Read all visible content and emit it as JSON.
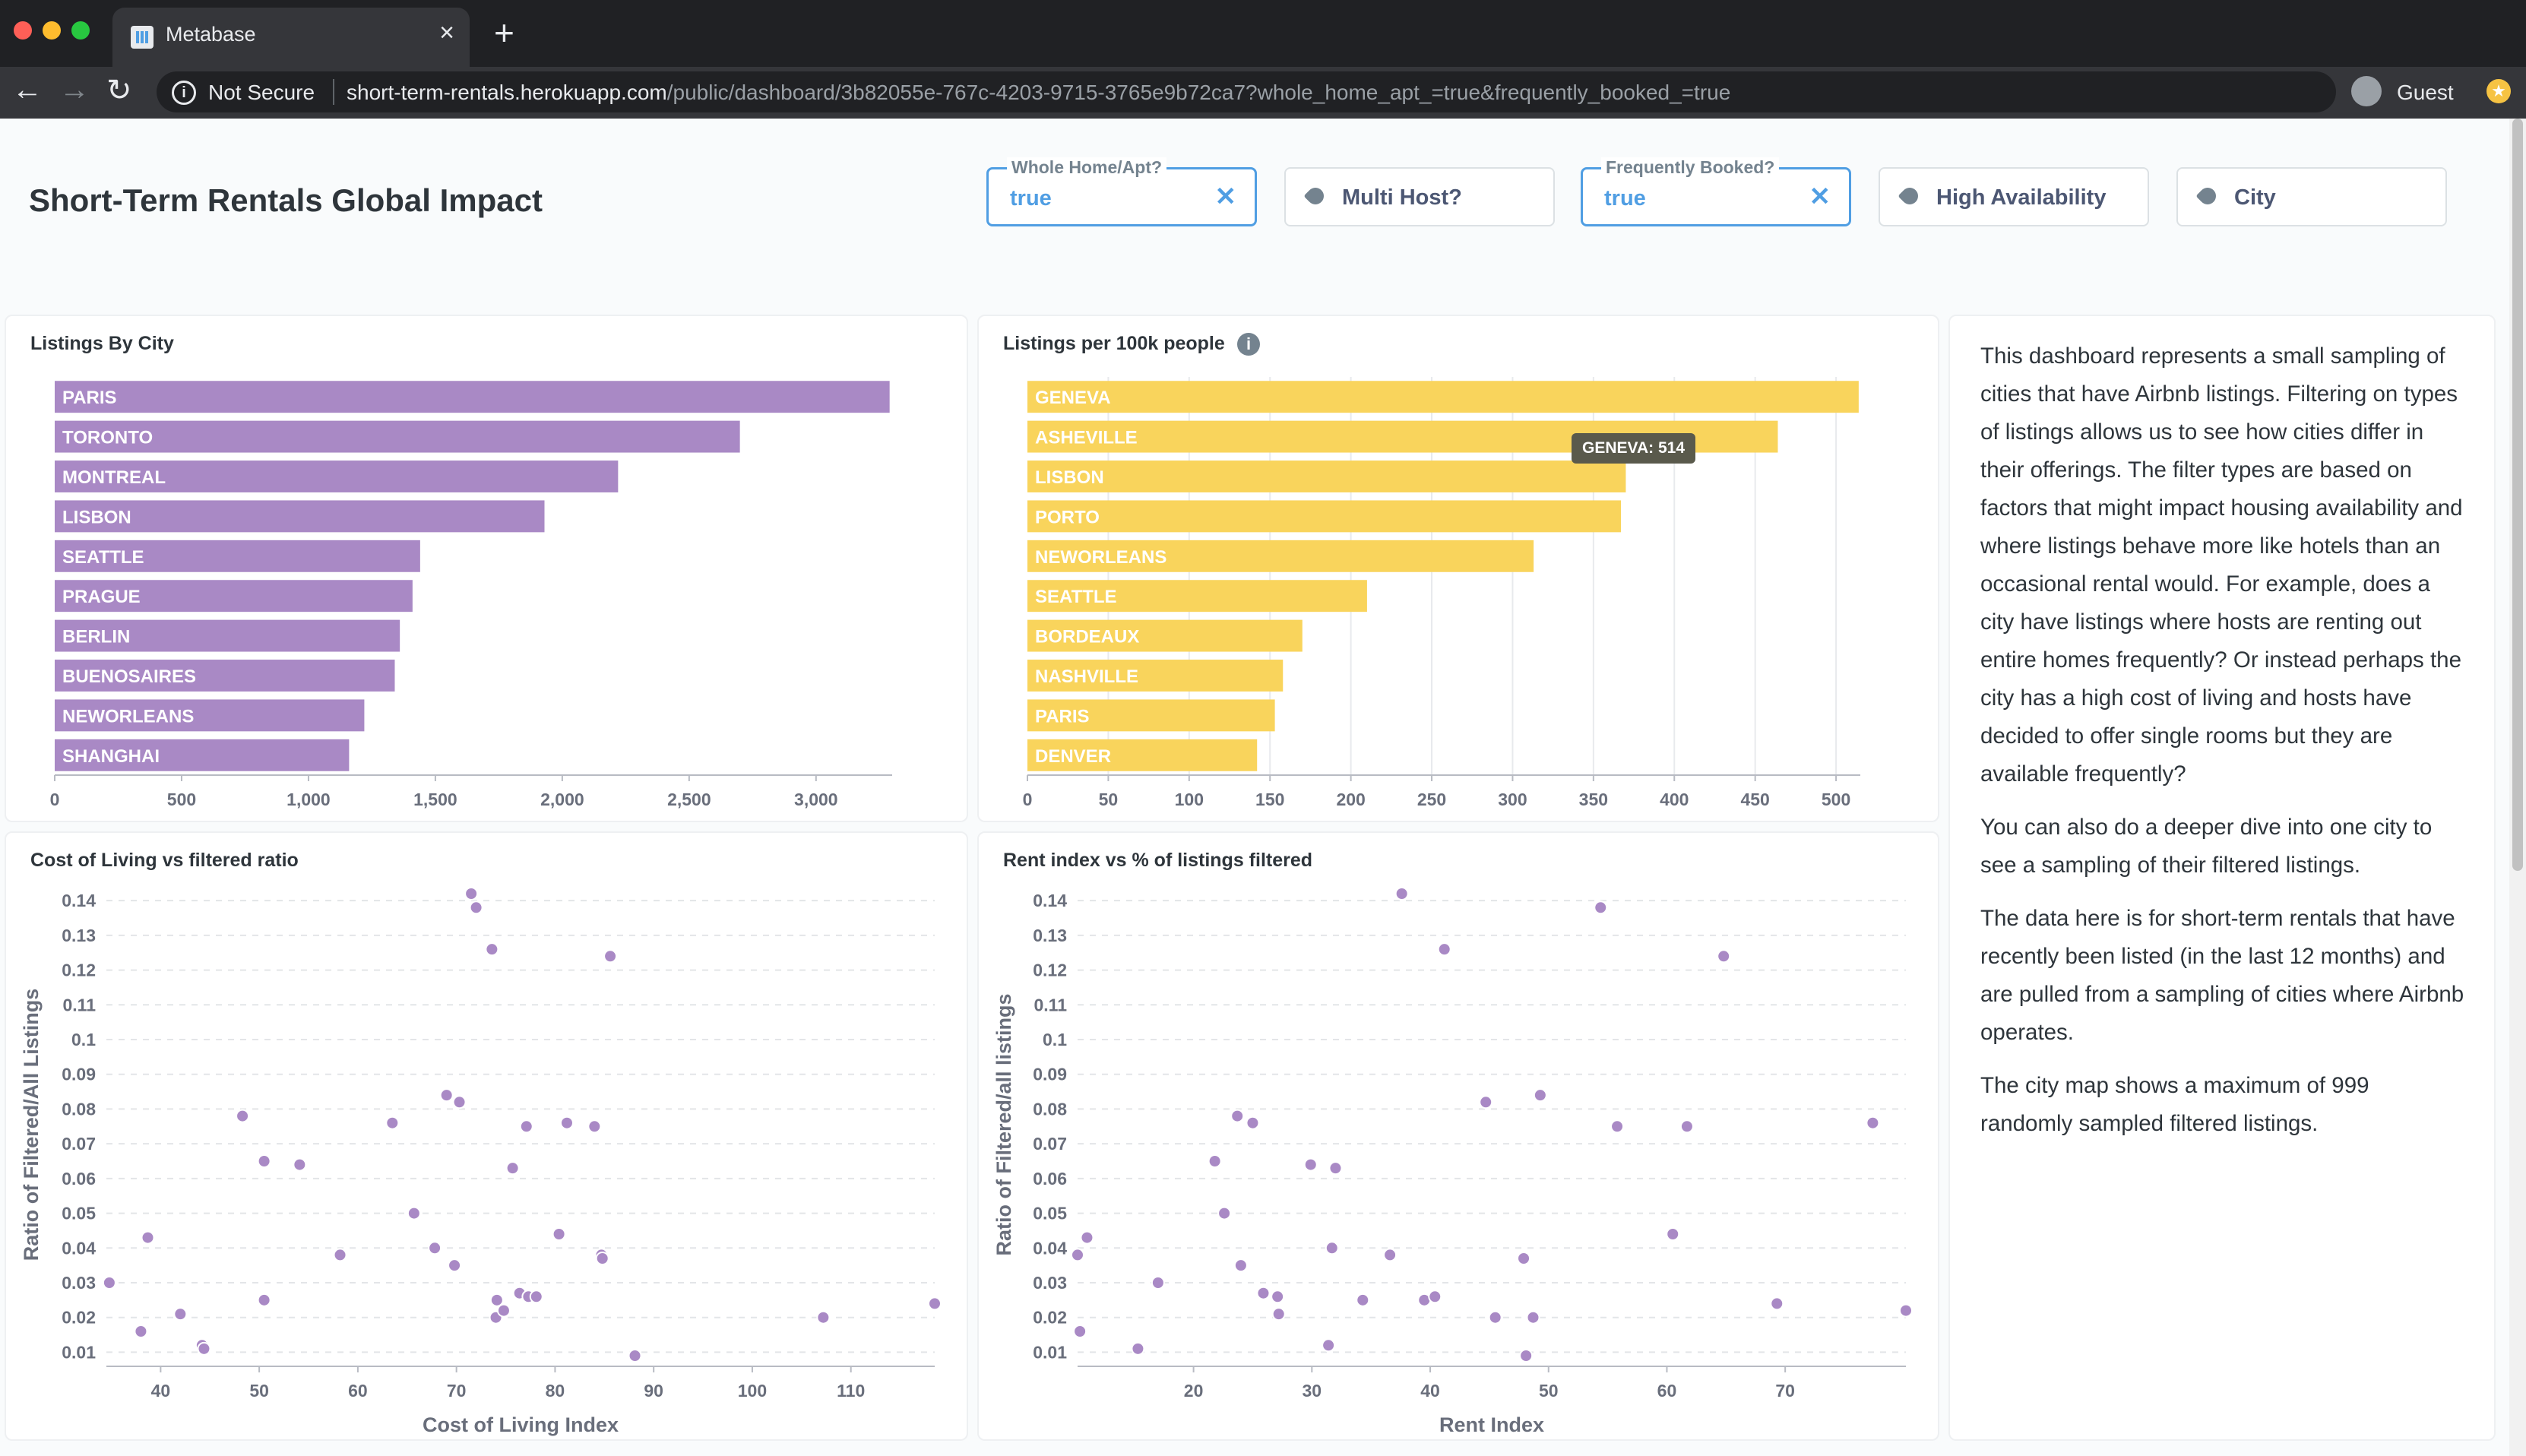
{
  "browser": {
    "tab_title": "Metabase",
    "security_label": "Not Secure",
    "url_host": "short-term-rentals.herokuapp.com",
    "url_path": "/public/dashboard/3b82055e-767c-4203-9715-3765e9b72ca7?whole_home_apt_=true&frequently_booked_=true",
    "profile_label": "Guest"
  },
  "dashboard": {
    "title": "Short-Term Rentals Global Impact",
    "filters": [
      {
        "label": "Whole Home/Apt?",
        "value": "true",
        "active": true
      },
      {
        "name": "Multi Host?",
        "active": false
      },
      {
        "label": "Frequently Booked?",
        "value": "true",
        "active": true
      },
      {
        "name": "High Availability",
        "active": false
      },
      {
        "name": "City",
        "active": false
      }
    ]
  },
  "colors": {
    "purple": "#a989c5",
    "yellow": "#f9d45c",
    "accent": "#509ee3"
  },
  "cards": {
    "listings_by_city": {
      "title": "Listings By City"
    },
    "listings_per_100k": {
      "title": "Listings per 100k people",
      "tooltip": "GENEVA: 514"
    },
    "cost_of_living": {
      "title": "Cost of Living vs filtered ratio"
    },
    "rent_index": {
      "title": "Rent index vs % of listings filtered"
    }
  },
  "text_card": {
    "paragraphs": [
      "This dashboard represents a small sampling of cities that have Airbnb listings. Filtering on types of listings allows us to see how cities differ in their offerings. The filter types are based on factors that might impact housing availability and where listings behave more like hotels than an occasional rental would. For example, does a city have listings where hosts are renting out entire homes frequently? Or instead perhaps the city has a high cost of living and hosts have decided to offer single rooms but they are available frequently?",
      "You can also do a deeper dive into one city to see a sampling of their filtered listings.",
      "The data here is for short-term rentals that have recently been listed (in the last 12 months) and are pulled from a sampling of cities where Airbnb operates.",
      "The city map shows a maximum of 999 randomly sampled filtered listings."
    ]
  },
  "chart_data": [
    {
      "type": "bar",
      "title": "Listings By City",
      "orientation": "horizontal",
      "categories": [
        "PARIS",
        "TORONTO",
        "MONTREAL",
        "LISBON",
        "SEATTLE",
        "PRAGUE",
        "BERLIN",
        "BUENOSAIRES",
        "NEWORLEANS",
        "SHANGHAI"
      ],
      "values": [
        3290,
        2700,
        2220,
        1930,
        1440,
        1410,
        1360,
        1340,
        1220,
        1160
      ],
      "xlim": [
        0,
        3300
      ],
      "xticks": [
        0,
        500,
        1000,
        1500,
        2000,
        2500,
        3000
      ],
      "xtick_labels": [
        "0",
        "500",
        "1,000",
        "1,500",
        "2,000",
        "2,500",
        "3,000"
      ],
      "color": "#a989c5"
    },
    {
      "type": "bar",
      "title": "Listings per 100k people",
      "orientation": "horizontal",
      "categories": [
        "GENEVA",
        "ASHEVILLE",
        "LISBON",
        "PORTO",
        "NEWORLEANS",
        "SEATTLE",
        "BORDEAUX",
        "NASHVILLE",
        "PARIS",
        "DENVER"
      ],
      "values": [
        514,
        464,
        370,
        367,
        313,
        210,
        170,
        158,
        153,
        142
      ],
      "xlim": [
        0,
        515
      ],
      "xticks": [
        0,
        50,
        100,
        150,
        200,
        250,
        300,
        350,
        400,
        450,
        500
      ],
      "xtick_labels": [
        "0",
        "50",
        "100",
        "150",
        "200",
        "250",
        "300",
        "350",
        "400",
        "450",
        "500"
      ],
      "grid": true,
      "color": "#f9d45c"
    },
    {
      "type": "scatter",
      "title": "Cost of Living vs filtered ratio",
      "xlabel": "Cost of Living Index",
      "ylabel": "Ratio of Filtered/All Listings",
      "xlim": [
        34.5,
        118.5
      ],
      "ylim": [
        0.009,
        0.142
      ],
      "xticks": [
        40,
        50,
        60,
        70,
        80,
        90,
        100,
        110
      ],
      "yticks": [
        0.01,
        0.02,
        0.03,
        0.04,
        0.05,
        0.06,
        0.07,
        0.08,
        0.09,
        0.1,
        0.11,
        0.12,
        0.13,
        0.14
      ],
      "points": [
        [
          34.8,
          0.03
        ],
        [
          38,
          0.016
        ],
        [
          38.7,
          0.043
        ],
        [
          42,
          0.021
        ],
        [
          44.2,
          0.012
        ],
        [
          44.4,
          0.011
        ],
        [
          48.3,
          0.078
        ],
        [
          50.5,
          0.065
        ],
        [
          50.5,
          0.025
        ],
        [
          54.1,
          0.064
        ],
        [
          58.2,
          0.038
        ],
        [
          63.5,
          0.076
        ],
        [
          65.7,
          0.05
        ],
        [
          67.8,
          0.04
        ],
        [
          69,
          0.084
        ],
        [
          69.8,
          0.035
        ],
        [
          70.3,
          0.082
        ],
        [
          71.5,
          0.142
        ],
        [
          72,
          0.138
        ],
        [
          73.6,
          0.126
        ],
        [
          74.1,
          0.025
        ],
        [
          74,
          0.02
        ],
        [
          74.8,
          0.022
        ],
        [
          75.7,
          0.063
        ],
        [
          76.4,
          0.027
        ],
        [
          77.1,
          0.075
        ],
        [
          77.3,
          0.026
        ],
        [
          78.1,
          0.026
        ],
        [
          80.4,
          0.044
        ],
        [
          81.2,
          0.076
        ],
        [
          84,
          0.075
        ],
        [
          84.7,
          0.038
        ],
        [
          84.8,
          0.037
        ],
        [
          85.6,
          0.124
        ],
        [
          88.1,
          0.009
        ],
        [
          107.2,
          0.02
        ],
        [
          118.5,
          0.024
        ]
      ],
      "color": "#a989c5"
    },
    {
      "type": "scatter",
      "title": "Rent index vs % of listings filtered",
      "xlabel": "Rent Index",
      "ylabel": "Ratio of Filtered/all listings",
      "xlim": [
        10.2,
        80.2
      ],
      "ylim": [
        0.009,
        0.142
      ],
      "xticks": [
        20,
        30,
        40,
        50,
        60,
        70
      ],
      "yticks": [
        0.01,
        0.02,
        0.03,
        0.04,
        0.05,
        0.06,
        0.07,
        0.08,
        0.09,
        0.1,
        0.11,
        0.12,
        0.13,
        0.14
      ],
      "points": [
        [
          10.2,
          0.038
        ],
        [
          10.4,
          0.016
        ],
        [
          11,
          0.043
        ],
        [
          15.3,
          0.011
        ],
        [
          17,
          0.03
        ],
        [
          21.8,
          0.065
        ],
        [
          22.6,
          0.05
        ],
        [
          23.7,
          0.078
        ],
        [
          24,
          0.035
        ],
        [
          25,
          0.076
        ],
        [
          25.9,
          0.027
        ],
        [
          27.1,
          0.026
        ],
        [
          27.2,
          0.021
        ],
        [
          29.9,
          0.064
        ],
        [
          31.4,
          0.012
        ],
        [
          31.7,
          0.04
        ],
        [
          32,
          0.063
        ],
        [
          34.3,
          0.025
        ],
        [
          36.6,
          0.038
        ],
        [
          37.6,
          0.142
        ],
        [
          39.5,
          0.025
        ],
        [
          40.4,
          0.026
        ],
        [
          41.2,
          0.126
        ],
        [
          44.7,
          0.082
        ],
        [
          45.5,
          0.02
        ],
        [
          47.9,
          0.037
        ],
        [
          48.1,
          0.009
        ],
        [
          48.7,
          0.02
        ],
        [
          49.3,
          0.084
        ],
        [
          54.4,
          0.138
        ],
        [
          55.8,
          0.075
        ],
        [
          60.5,
          0.044
        ],
        [
          61.7,
          0.075
        ],
        [
          64.8,
          0.124
        ],
        [
          69.3,
          0.024
        ],
        [
          77.4,
          0.076
        ],
        [
          80.2,
          0.022
        ]
      ],
      "color": "#a989c5"
    }
  ]
}
